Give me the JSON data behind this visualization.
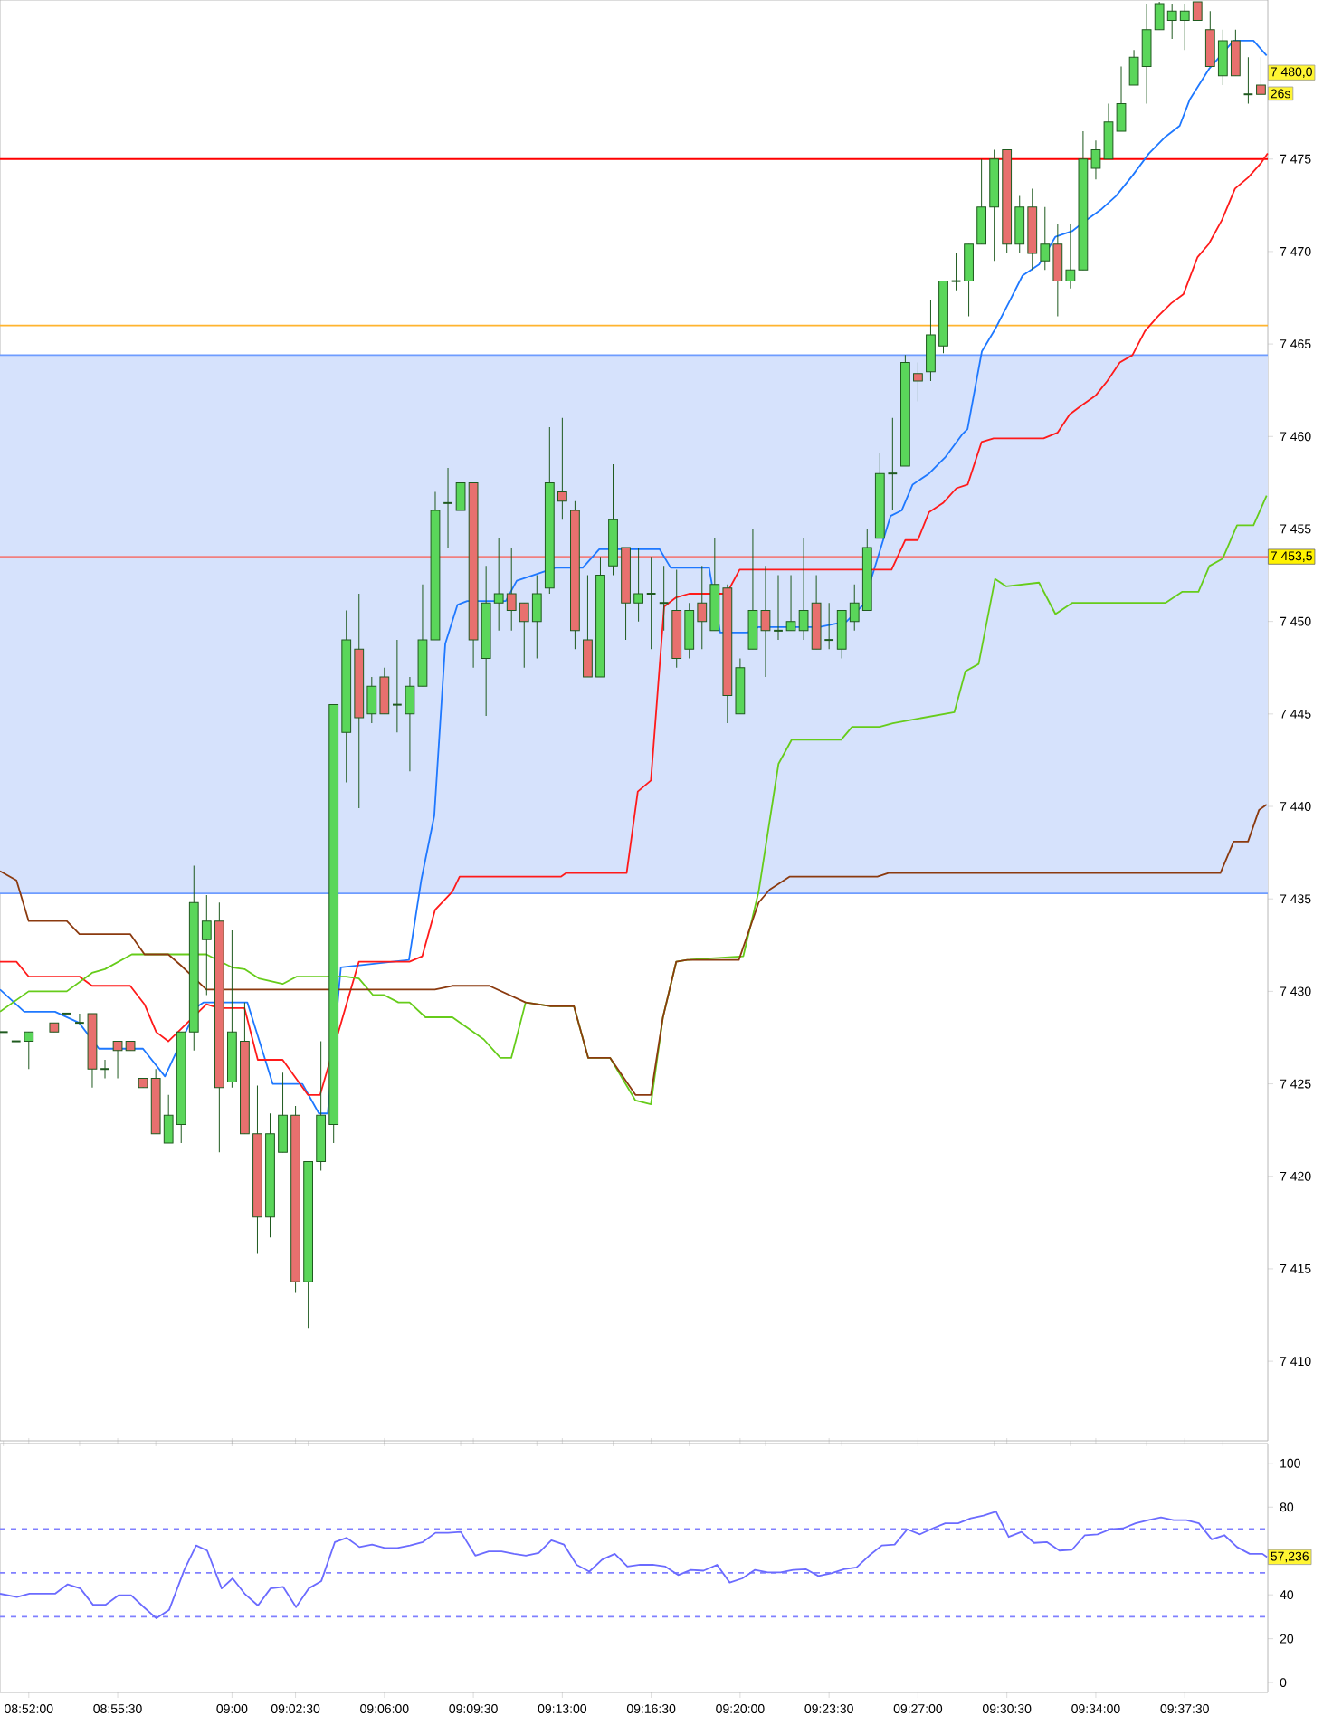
{
  "chart_data": [
    {
      "type": "candlestick",
      "xlim": [
        8.8478,
        9.6795
      ],
      "ylim": [
        7405.7,
        7483.6
      ],
      "tick_labels": "y",
      "yticks": [
        {
          "value": 7410,
          "label": "7 410"
        },
        {
          "value": 7415,
          "label": "7 415"
        },
        {
          "value": 7420,
          "label": "7 420"
        },
        {
          "value": 7425,
          "label": "7 425"
        },
        {
          "value": 7430,
          "label": "7 430"
        },
        {
          "value": 7435,
          "label": "7 435"
        },
        {
          "value": 7440,
          "label": "7 440"
        },
        {
          "value": 7445,
          "label": "7 445"
        },
        {
          "value": 7450,
          "label": "7 450"
        },
        {
          "value": 7455,
          "label": "7 455"
        },
        {
          "value": 7460,
          "label": "7 460"
        },
        {
          "value": 7465,
          "label": "7 465"
        },
        {
          "value": 7470,
          "label": "7 470"
        },
        {
          "value": 7475,
          "label": "7 475"
        }
      ],
      "x": [
        8.85,
        8.85833,
        8.86667,
        8.88333,
        8.89167,
        8.9,
        8.90833,
        8.91667,
        8.925,
        8.93333,
        8.94167,
        8.95,
        8.95833,
        8.96667,
        8.975,
        8.98333,
        8.99167,
        9.0,
        9.00833,
        9.01667,
        9.025,
        9.03333,
        9.04167,
        9.05,
        9.05833,
        9.06667,
        9.075,
        9.08333,
        9.09167,
        9.1,
        9.10833,
        9.11667,
        9.125,
        9.13333,
        9.14167,
        9.15,
        9.15833,
        9.16667,
        9.175,
        9.18333,
        9.19167,
        9.2,
        9.20833,
        9.21667,
        9.225,
        9.23333,
        9.24167,
        9.25,
        9.25833,
        9.26667,
        9.275,
        9.28333,
        9.29167,
        9.3,
        9.30833,
        9.31667,
        9.325,
        9.33333,
        9.34167,
        9.35,
        9.35833,
        9.36667,
        9.375,
        9.38333,
        9.39167,
        9.4,
        9.40833,
        9.41667,
        9.425,
        9.43333,
        9.44167,
        9.45,
        9.45833,
        9.46667,
        9.475,
        9.48333,
        9.49167,
        9.5,
        9.50833,
        9.51667,
        9.525,
        9.53333,
        9.54167,
        9.55,
        9.55833,
        9.56667,
        9.575,
        9.58333,
        9.59167,
        9.6,
        9.60833,
        9.61667,
        9.625,
        9.63333,
        9.64167,
        9.65,
        9.65833,
        9.66667,
        9.675
      ],
      "ohlc": [
        [
          7427.8,
          7427.8,
          7427.8,
          7427.8
        ],
        [
          7427.3,
          7427.3,
          7427.3,
          7427.3
        ],
        [
          7427.3,
          7427.8,
          7425.8,
          7427.8
        ],
        [
          7428.3,
          7428.3,
          7427.8,
          7427.8
        ],
        [
          7428.8,
          7428.8,
          7428.8,
          7428.8
        ],
        [
          7428.3,
          7428.8,
          7428.3,
          7428.3
        ],
        [
          7428.8,
          7428.8,
          7424.8,
          7425.8
        ],
        [
          7425.8,
          7426.3,
          7425.3,
          7425.8
        ],
        [
          7427.3,
          7427.3,
          7425.3,
          7426.8
        ],
        [
          7427.3,
          7427.3,
          7426.8,
          7426.8
        ],
        [
          7425.3,
          7425.3,
          7424.8,
          7424.8
        ],
        [
          7425.3,
          7425.8,
          7422.3,
          7422.3
        ],
        [
          7421.8,
          7424.4,
          7421.8,
          7423.3
        ],
        [
          7422.8,
          7427.8,
          7421.8,
          7427.8
        ],
        [
          7427.8,
          7436.8,
          7426.8,
          7434.8
        ],
        [
          7432.8,
          7435.2,
          7429.8,
          7433.8
        ],
        [
          7433.8,
          7434.8,
          7421.3,
          7424.8
        ],
        [
          7425.1,
          7433.3,
          7424.8,
          7427.8
        ],
        [
          7427.3,
          7429.4,
          7422.3,
          7422.3
        ],
        [
          7422.3,
          7424.9,
          7415.8,
          7417.8
        ],
        [
          7417.8,
          7423.4,
          7416.7,
          7422.3
        ],
        [
          7421.3,
          7425.6,
          7421.3,
          7423.3
        ],
        [
          7423.3,
          7423.8,
          7413.7,
          7414.3
        ],
        [
          7414.3,
          7420.8,
          7411.8,
          7420.8
        ],
        [
          7420.8,
          7427.3,
          7420.3,
          7423.3
        ],
        [
          7422.8,
          7445.5,
          7421.8,
          7445.5
        ],
        [
          7444.0,
          7450.6,
          7441.3,
          7449.0
        ],
        [
          7448.5,
          7451.5,
          7439.9,
          7444.8
        ],
        [
          7445.0,
          7447.0,
          7444.5,
          7446.5
        ],
        [
          7447.0,
          7447.5,
          7445.0,
          7445.0
        ],
        [
          7445.5,
          7449.0,
          7444.0,
          7445.5
        ],
        [
          7445.0,
          7447.0,
          7441.9,
          7446.5
        ],
        [
          7446.5,
          7452.0,
          7446.5,
          7449.0
        ],
        [
          7449.0,
          7457.0,
          7449.0,
          7456.0
        ],
        [
          7456.4,
          7458.3,
          7454.0,
          7456.4
        ],
        [
          7456.0,
          7457.5,
          7456.0,
          7457.5
        ],
        [
          7457.5,
          7457.5,
          7447.5,
          7449.0
        ],
        [
          7448.0,
          7453.0,
          7444.9,
          7451.0
        ],
        [
          7451.0,
          7454.5,
          7449.5,
          7451.5
        ],
        [
          7451.5,
          7454.0,
          7449.5,
          7450.6
        ],
        [
          7451.0,
          7451.0,
          7447.5,
          7450.0
        ],
        [
          7450.0,
          7452.5,
          7448.0,
          7451.5
        ],
        [
          7451.8,
          7460.5,
          7451.5,
          7457.5
        ],
        [
          7457.0,
          7461.0,
          7455.5,
          7456.5
        ],
        [
          7456.0,
          7456.5,
          7448.5,
          7449.5
        ],
        [
          7449.0,
          7452.5,
          7447.0,
          7447.0
        ],
        [
          7447.0,
          7453.5,
          7447.0,
          7452.5
        ],
        [
          7453.0,
          7458.5,
          7452.5,
          7455.5
        ],
        [
          7454.0,
          7454.0,
          7449.0,
          7451.0
        ],
        [
          7451.0,
          7454.0,
          7450.0,
          7451.5
        ],
        [
          7451.5,
          7453.5,
          7448.5,
          7451.5
        ],
        [
          7451.0,
          7453.0,
          7449.5,
          7451.0
        ],
        [
          7450.6,
          7452.8,
          7447.5,
          7448.0
        ],
        [
          7448.5,
          7451.0,
          7448.0,
          7450.6
        ],
        [
          7451.0,
          7453.0,
          7448.5,
          7450.0
        ],
        [
          7449.5,
          7454.5,
          7449.5,
          7452.0
        ],
        [
          7451.8,
          7452.0,
          7444.5,
          7446.0
        ],
        [
          7445.0,
          7448.0,
          7445.0,
          7447.5
        ],
        [
          7448.5,
          7455.0,
          7448.5,
          7450.6
        ],
        [
          7450.6,
          7453.0,
          7447.0,
          7449.5
        ],
        [
          7449.5,
          7452.5,
          7449.0,
          7449.5
        ],
        [
          7449.5,
          7452.5,
          7449.5,
          7450.0
        ],
        [
          7449.5,
          7454.5,
          7449.0,
          7450.6
        ],
        [
          7451.0,
          7452.5,
          7448.5,
          7448.5
        ],
        [
          7449.0,
          7451.0,
          7448.5,
          7449.0
        ],
        [
          7448.5,
          7450.6,
          7448.0,
          7450.6
        ],
        [
          7450.0,
          7452.0,
          7449.5,
          7451.0
        ],
        [
          7450.6,
          7455.0,
          7450.6,
          7454.0
        ],
        [
          7454.5,
          7459.1,
          7454.5,
          7458.0
        ],
        [
          7458.0,
          7461.0,
          7456.0,
          7458.0
        ],
        [
          7458.4,
          7464.4,
          7458.4,
          7464.0
        ],
        [
          7463.4,
          7464.0,
          7461.9,
          7463.0
        ],
        [
          7463.5,
          7467.4,
          7463.0,
          7465.5
        ],
        [
          7464.9,
          7468.4,
          7464.5,
          7468.4
        ],
        [
          7468.4,
          7469.9,
          7467.9,
          7468.4
        ],
        [
          7468.4,
          7470.4,
          7466.5,
          7470.4
        ],
        [
          7470.4,
          7475.0,
          7470.4,
          7472.4
        ],
        [
          7472.4,
          7475.5,
          7469.5,
          7475.0
        ],
        [
          7475.5,
          7475.5,
          7469.9,
          7470.4
        ],
        [
          7470.4,
          7473.0,
          7469.9,
          7472.4
        ],
        [
          7472.4,
          7473.4,
          7469.0,
          7469.9
        ],
        [
          7469.5,
          7472.4,
          7469.0,
          7470.4
        ],
        [
          7470.4,
          7471.5,
          7466.5,
          7468.4
        ],
        [
          7468.4,
          7471.5,
          7468.0,
          7469.0
        ],
        [
          7469.0,
          7476.5,
          7469.0,
          7475.0
        ],
        [
          7474.5,
          7476.0,
          7473.9,
          7475.5
        ],
        [
          7475.0,
          7478.0,
          7475.0,
          7477.0
        ],
        [
          7476.5,
          7480.0,
          7476.5,
          7478.0
        ],
        [
          7479.0,
          7480.9,
          7479.0,
          7480.5
        ],
        [
          7480.0,
          7483.4,
          7478.0,
          7482.0
        ],
        [
          7482.0,
          7483.5,
          7482.0,
          7483.4
        ],
        [
          7482.5,
          7483.4,
          7481.5,
          7483.0
        ],
        [
          7482.5,
          7483.4,
          7480.9,
          7483.0
        ],
        [
          7483.5,
          7483.5,
          7482.5,
          7482.5
        ],
        [
          7482.0,
          7483.0,
          7480.0,
          7480.0
        ],
        [
          7479.5,
          7482.0,
          7479.0,
          7481.4
        ],
        [
          7481.4,
          7482.0,
          7479.5,
          7479.5
        ],
        [
          7478.5,
          7480.5,
          7478.0,
          7478.5
        ],
        [
          7479.0,
          7480.5,
          7478.5,
          7478.5
        ]
      ],
      "series": [
        {
          "type": "line",
          "color": "#1e78ff",
          "x": [
            8.8478,
            8.8637,
            8.8839,
            8.8997,
            8.9127,
            8.9416,
            8.956,
            8.9668,
            8.9776,
            8.9812,
            9.0101,
            9.0267,
            9.0462,
            9.057,
            9.0628,
            9.0714,
            9.1161,
            9.1241,
            9.1327,
            9.1399,
            9.1479,
            9.1543,
            9.1796,
            9.1868,
            9.2121,
            9.2301,
            9.2409,
            9.2806,
            9.2878,
            9.313,
            9.3202,
            9.3383,
            9.3455,
            9.3852,
            9.4032,
            9.414,
            9.4212,
            9.432,
            9.4393,
            9.4465,
            9.4573,
            9.4681,
            9.4789,
            9.4825,
            9.4919,
            9.5006,
            9.51,
            9.5186,
            9.5294,
            9.5402,
            9.5511,
            9.5604,
            9.5705,
            9.5799,
            9.5907,
            9.6015,
            9.6123,
            9.6217,
            9.6282,
            9.6412,
            9.6571,
            9.6701,
            9.6787
          ],
          "values": [
            7430.1,
            7428.9,
            7428.9,
            7428.3,
            7426.9,
            7426.9,
            7425.4,
            null,
            7429.2,
            7429.4,
            7429.4,
            7425.0,
            7425.0,
            7423.4,
            7423.4,
            7431.3,
            7431.7,
            7436.0,
            7439.5,
            7448.8,
            7450.9,
            7451.1,
            7451.1,
            7452.2,
            7452.9,
            7452.9,
            7453.9,
            7453.9,
            7452.9,
            7452.9,
            7449.4,
            7449.4,
            7449.7,
            7449.7,
            7450.0,
            7450.9,
            7452.8,
            7455.7,
            7456.0,
            7457.4,
            7458.0,
            7458.9,
            7460.1,
            7460.4,
            7464.6,
            7465.8,
            7467.3,
            7468.7,
            7469.3,
            7470.8,
            7471.1,
            7471.7,
            7472.3,
            7473.0,
            7474.1,
            7475.3,
            7476.2,
            7476.8,
            7478.2,
            7479.9,
            7481.4,
            7481.4,
            7480.6
          ]
        },
        {
          "type": "line",
          "color": "#ff1a1a",
          "x": [
            8.8478,
            8.8586,
            8.8666,
            8.8999,
            8.9082,
            8.9332,
            8.9426,
            8.9503,
            8.9582,
            8.9669,
            8.9752,
            8.9832,
            8.9915,
            9.0082,
            9.0169,
            9.0332,
            9.0498,
            9.0578,
            9.0832,
            9.1164,
            9.1248,
            9.1332,
            9.1446,
            9.1493,
            9.2157,
            9.2193,
            9.2589,
            9.2662,
            9.2748,
            9.2835,
            9.2914,
            9.2999,
            9.3245,
            9.333,
            9.4327,
            9.4417,
            9.4499,
            9.4572,
            9.4664,
            9.4752,
            9.4826,
            9.4917,
            9.4996,
            9.5324,
            9.5415,
            9.5496,
            9.5577,
            9.5664,
            9.5742,
            9.5824,
            9.5907,
            9.5989,
            9.6075,
            9.6161,
            9.6242,
            9.6334,
            9.6407,
            9.6494,
            9.658,
            9.6666,
            9.6752,
            9.6794
          ],
          "values": [
            7431.6,
            7431.6,
            7430.8,
            7430.8,
            7430.3,
            7430.3,
            7429.3,
            7427.8,
            7427.3,
            null,
            null,
            7429.3,
            7429.1,
            7429.1,
            7426.3,
            7426.3,
            7424.4,
            7424.4,
            7431.6,
            7431.6,
            7431.9,
            7434.4,
            7435.4,
            7436.2,
            7436.2,
            7436.4,
            7436.4,
            7440.8,
            7441.4,
            7450.8,
            7451.3,
            7451.5,
            7451.5,
            7452.8,
            7452.8,
            7454.4,
            7454.4,
            7455.9,
            7456.4,
            7457.2,
            7457.4,
            7459.7,
            7459.9,
            7459.9,
            7460.2,
            7461.2,
            7461.7,
            7462.2,
            7463.0,
            7464.0,
            7464.4,
            7465.7,
            7466.5,
            7467.2,
            7467.7,
            7469.7,
            7470.4,
            7471.7,
            7473.4,
            7474.0,
            7474.8,
            7475.3
          ]
        },
        {
          "type": "line",
          "color": "#66cc1a",
          "x": [
            8.8478,
            8.8666,
            8.8916,
            8.9082,
            8.9166,
            8.9343,
            8.9832,
            8.9999,
            9.0082,
            9.0176,
            9.0332,
            9.0425,
            9.0748,
            9.0832,
            9.0925,
            9.0998,
            9.1092,
            9.1165,
            9.1269,
            9.1446,
            9.1652,
            9.176,
            9.1832,
            9.1926,
            9.2085,
            9.2243,
            9.2337,
            9.2481,
            9.2647,
            9.2748,
            9.2827,
            9.2914,
            9.2986,
            9.3354,
            9.3455,
            9.3585,
            9.3671,
            9.3996,
            9.4068,
            9.4248,
            9.4335,
            9.4537,
            9.4739,
            9.4811,
            9.4898,
            9.5006,
            9.5078,
            9.5294,
            9.5402,
            9.5511,
            9.6123,
            9.6232,
            9.634,
            9.6412,
            9.6499,
            9.6593,
            9.6701,
            9.6787
          ],
          "values": [
            7428.9,
            7430.0,
            7430.0,
            7431.0,
            7431.2,
            7432.0,
            7432.0,
            7431.3,
            7431.2,
            7430.7,
            7430.4,
            7430.8,
            7430.8,
            7430.7,
            7429.8,
            7429.8,
            7429.4,
            7429.4,
            7428.6,
            7428.6,
            7427.4,
            7426.4,
            7426.4,
            7429.4,
            7429.2,
            7429.2,
            7426.4,
            7426.4,
            7424.1,
            7423.9,
            7428.6,
            7431.6,
            7431.7,
            7431.9,
            7435.4,
            7442.3,
            7443.6,
            7443.6,
            7444.3,
            7444.3,
            7444.5,
            7444.8,
            7445.1,
            7447.3,
            7447.7,
            7452.3,
            7451.9,
            7452.1,
            7450.4,
            7451.0,
            7451.0,
            7451.6,
            7451.6,
            7453.0,
            7453.4,
            7455.2,
            7455.2,
            7456.8
          ]
        },
        {
          "type": "line",
          "color": "#8b3a0f",
          "x": [
            8.8478,
            8.8586,
            8.8666,
            8.8916,
            8.8999,
            8.9332,
            8.9426,
            8.9582,
            8.9665,
            8.9752,
            8.9832,
            9.1331,
            9.1446,
            9.1688,
            9.1926,
            9.2085,
            9.2243,
            9.2337,
            9.2481,
            9.2647,
            9.2748,
            9.2827,
            9.2914,
            9.2986,
            9.3325,
            9.3455,
            9.3527,
            9.3657,
            9.4234,
            9.4306,
            9.6484,
            9.6571,
            9.6665,
            9.6737,
            9.6787
          ],
          "values": [
            7436.5,
            7436.0,
            7433.8,
            7433.8,
            7433.1,
            7433.1,
            7432.0,
            7432.0,
            7431.4,
            null,
            7430.1,
            7430.1,
            7430.3,
            7430.3,
            7429.4,
            7429.2,
            7429.2,
            7426.4,
            7426.4,
            7424.4,
            7424.4,
            7428.6,
            7431.6,
            7431.7,
            7431.7,
            7434.8,
            7435.5,
            7436.2,
            7436.2,
            7436.4,
            7436.4,
            7438.1,
            7438.1,
            7439.8,
            7440.1
          ]
        }
      ],
      "bands": [
        {
          "axis": "y",
          "from": 7435.3,
          "to": 7464.4,
          "color": "#d6e2fc"
        }
      ],
      "ref_lines": [
        {
          "axis": "y",
          "value": 7464.4,
          "color": "#6e9cff"
        },
        {
          "axis": "y",
          "value": 7435.3,
          "color": "#6e9cff"
        },
        {
          "axis": "y",
          "value": 7453.5,
          "label": "7 453,5",
          "color": "#f08080"
        },
        {
          "axis": "y",
          "value": 7466,
          "color": "#ffb42e"
        },
        {
          "axis": "y",
          "value": 7475,
          "color": "#ff0000"
        }
      ],
      "annotations": [
        "7 480,0",
        "26s"
      ]
    },
    {
      "type": "line",
      "color": "#6b6bff",
      "xlim": [
        8.8478,
        9.6795
      ],
      "ylim": [
        -4.5,
        109
      ],
      "yticks": [
        0,
        20,
        40,
        {
          "value": 60,
          "label": null
        },
        80,
        100
      ],
      "xticks": [
        {
          "value": 8.866667,
          "label": "08:52:00"
        },
        {
          "value": 8.925,
          "label": "08:55:30"
        },
        {
          "value": 9.0,
          "label": "09:00"
        },
        {
          "value": 9.041667,
          "label": "09:02:30"
        },
        {
          "value": 9.1,
          "label": "09:06:00"
        },
        {
          "value": 9.158333,
          "label": "09:09:30"
        },
        {
          "value": 9.216667,
          "label": "09:13:00"
        },
        {
          "value": 9.275,
          "label": "09:16:30"
        },
        {
          "value": 9.333333,
          "label": "09:20:00"
        },
        {
          "value": 9.391667,
          "label": "09:23:30"
        },
        {
          "value": 9.45,
          "label": "09:27:00"
        },
        {
          "value": 9.508333,
          "label": "09:30:30"
        },
        {
          "value": 9.566667,
          "label": "09:34:00"
        },
        {
          "value": 9.625,
          "label": "09:37:30"
        }
      ],
      "x": [
        8.8478,
        8.8589,
        8.8672,
        8.8839,
        8.8922,
        8.9005,
        8.9088,
        8.9172,
        8.9255,
        8.9338,
        8.9421,
        8.9504,
        8.9588,
        8.9687,
        8.9765,
        8.9837,
        8.9932,
        9.0004,
        9.0087,
        9.017,
        9.0253,
        9.0336,
        9.042,
        9.0503,
        9.0586,
        9.0675,
        9.0753,
        9.0836,
        9.0919,
        9.1002,
        9.1085,
        9.1168,
        9.1252,
        9.1335,
        9.1418,
        9.1501,
        9.1596,
        9.1684,
        9.1768,
        9.1851,
        9.1928,
        9.2012,
        9.2095,
        9.2178,
        9.2261,
        9.2344,
        9.2427,
        9.2511,
        9.2594,
        9.2677,
        9.276,
        9.2843,
        9.2927,
        9.301,
        9.3093,
        9.3182,
        9.3265,
        9.3348,
        9.3431,
        9.3515,
        9.3598,
        9.3681,
        9.3764,
        9.3847,
        9.3931,
        9.4014,
        9.4097,
        9.418,
        9.4263,
        9.4347,
        9.443,
        9.4513,
        9.4596,
        9.4679,
        9.4763,
        9.4846,
        9.4929,
        9.5012,
        9.5095,
        9.5179,
        9.5262,
        9.5345,
        9.5428,
        9.5511,
        9.5595,
        9.5678,
        9.5761,
        9.5844,
        9.5927,
        9.6011,
        9.6094,
        9.6177,
        9.626,
        9.6343,
        9.6427,
        9.651,
        9.6593,
        9.6676,
        9.676,
        9.679
      ],
      "values": [
        40.5,
        39.0,
        40.5,
        40.5,
        44.8,
        42.9,
        35.5,
        35.5,
        39.8,
        39.8,
        34.4,
        29.3,
        33.2,
        51.4,
        62.5,
        60.2,
        42.9,
        47.5,
        40.2,
        35.1,
        42.9,
        43.6,
        34.4,
        42.9,
        46.3,
        64.1,
        66.0,
        61.8,
        62.9,
        61.4,
        61.4,
        62.5,
        64.1,
        68.3,
        68.3,
        68.7,
        57.9,
        59.8,
        59.8,
        58.7,
        57.9,
        59.1,
        64.9,
        62.9,
        53.7,
        50.6,
        56.0,
        58.7,
        52.9,
        53.7,
        53.7,
        52.9,
        49.0,
        51.4,
        51.0,
        53.7,
        45.6,
        47.5,
        51.4,
        50.2,
        50.2,
        51.4,
        51.7,
        48.6,
        49.8,
        51.7,
        52.5,
        57.9,
        62.5,
        62.9,
        69.9,
        67.6,
        70.3,
        72.6,
        72.6,
        74.9,
        76.1,
        78.0,
        66.4,
        68.7,
        63.7,
        64.1,
        60.2,
        60.6,
        67.2,
        67.6,
        69.9,
        70.3,
        72.6,
        74.1,
        75.3,
        74.1,
        74.1,
        72.6,
        65.3,
        67.2,
        61.8,
        58.7,
        58.7,
        57.2
      ],
      "ref_lines": [
        {
          "axis": "y",
          "value": 70,
          "color": "#8080ff",
          "line_style": "dashed"
        },
        {
          "axis": "y",
          "value": 50,
          "color": "#8080ff",
          "line_style": "dashed"
        },
        {
          "axis": "y",
          "value": 30,
          "color": "#8080ff",
          "line_style": "dashed"
        }
      ],
      "annotations": [
        {
          "text": "57,236",
          "x": 9.6795,
          "y": 57.236
        }
      ]
    }
  ]
}
